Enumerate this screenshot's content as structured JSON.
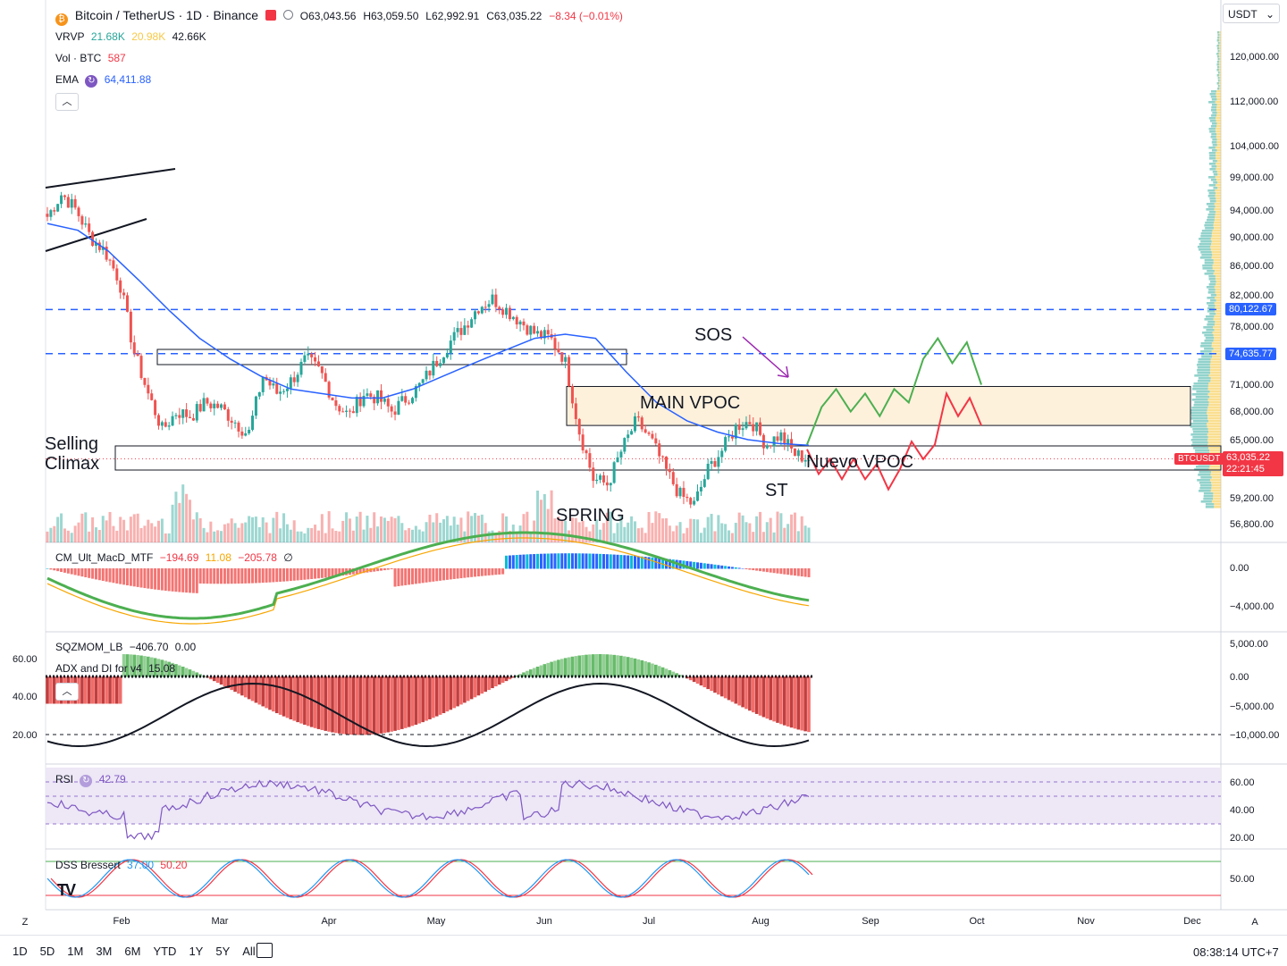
{
  "header": {
    "symbol": "Bitcoin / TetherUS · 1D · Binance",
    "open": "O63,043.56",
    "high": "H63,059.50",
    "low": "L62,992.91",
    "close": "C63,035.22",
    "change": "−8.34 (−0.01%)",
    "currency": "USDT"
  },
  "indicators": {
    "vrvp": {
      "name": "VRVP",
      "v1": "21.68K",
      "v2": "20.98K",
      "v3": "42.66K"
    },
    "vol": {
      "name": "Vol · BTC",
      "value": "587"
    },
    "ema": {
      "name": "EMA",
      "value": "64,411.88"
    },
    "macd": {
      "name": "CM_Ult_MacD_MTF",
      "v1": "−194.69",
      "v2": "11.08",
      "v3": "−205.78",
      "v4": "∅"
    },
    "sqz": {
      "name": "SQZMOM_LB",
      "v1": "−406.70",
      "v2": "0.00"
    },
    "adx": {
      "name": "ADX and DI for v4",
      "value": "15.08"
    },
    "rsi": {
      "name": "RSI",
      "value": "42.79"
    },
    "dss": {
      "name": "DSS Bressert",
      "v1": "37.00",
      "v2": "50.20"
    }
  },
  "annotations": {
    "sos": "SOS",
    "main_vpoc": "MAIN VPOC",
    "selling_climax_1": "Selling",
    "selling_climax_2": "Climax",
    "nuevo_vpoc": "Nuevo VPOC",
    "st": "ST",
    "spring": "SPRING"
  },
  "price_badges": {
    "level1": "80,122.67",
    "level2": "74,635.77",
    "current_symbol": "BTCUSDT",
    "current_price": "63,035.22",
    "countdown": "22:21:45"
  },
  "price_axis": [
    "120,000.00",
    "112,000.00",
    "104,000.00",
    "99,000.00",
    "94,000.00",
    "90,000.00",
    "86,000.00",
    "82,000.00",
    "78,000.00",
    "71,000.00",
    "68,000.00",
    "65,000.00",
    "59,200.00",
    "56,800.00"
  ],
  "macd_axis": [
    "0.00",
    "−4,000.00"
  ],
  "sqz_axis": [
    "5,000.00",
    "0.00",
    "−5,000.00",
    "−10,000.00"
  ],
  "adx_axis": [
    "60.00",
    "40.00",
    "20.00"
  ],
  "rsi_axis": [
    "60.00",
    "40.00",
    "20.00"
  ],
  "dss_axis": [
    "50.00"
  ],
  "time_axis": [
    "Feb",
    "Mar",
    "Apr",
    "May",
    "Jun",
    "Jul",
    "Aug",
    "Sep",
    "Oct",
    "Nov",
    "Dec"
  ],
  "bottom_bar": {
    "ranges": [
      "1D",
      "5D",
      "1M",
      "3M",
      "6M",
      "YTD",
      "1Y",
      "5Y",
      "All"
    ],
    "clock": "08:38:14 UTC+7",
    "z_label": "Z",
    "a_label": "A"
  },
  "colors": {
    "up": "#26a69a",
    "down": "#ef5350",
    "ema": "#2962ff",
    "level": "#2962ff",
    "green_path": "#4caf50",
    "red_path": "#f23645",
    "vpoc_fill": "#fdf1dc",
    "rsi_fill": "#ede7f6",
    "rsi_line": "#7e57c2"
  },
  "chart_data": {
    "type": "candlestick",
    "symbol": "BTCUSDT",
    "interval": "1D",
    "levels": [
      80122.67,
      74635.77
    ],
    "main_vpoc_zone": [
      66500,
      70800
    ],
    "nuevo_vpoc_zone": [
      61500,
      64200
    ],
    "close_path": [
      93000,
      96500,
      94000,
      90000,
      88000,
      84000,
      75000,
      70000,
      66000,
      68000,
      67500,
      69000,
      68500,
      67000,
      65500,
      72000,
      70000,
      71500,
      74000,
      72500,
      69000,
      67500,
      70000,
      69500,
      68000,
      69500,
      71000,
      73500,
      76000,
      78000,
      80500,
      81500,
      80000,
      78500,
      77000,
      76500,
      74000,
      66000,
      61000,
      60500,
      64000,
      67000,
      65000,
      62000,
      59500,
      58500,
      62000,
      64000,
      66500,
      67000,
      64500,
      65500,
      63500,
      63035
    ],
    "ema_path": [
      92000,
      91000,
      88000,
      84000,
      80000,
      76500,
      74000,
      72000,
      70500,
      70000,
      69500,
      69500,
      70500,
      72000,
      73500,
      75000,
      76500,
      77000,
      76500,
      72500,
      69000,
      67000,
      65800,
      65000,
      64600,
      64411
    ],
    "projection_green": [
      64500,
      68500,
      70500,
      68000,
      70000,
      67500,
      70500,
      69000,
      74000,
      76500,
      73500,
      76000,
      71000
    ],
    "projection_red": [
      64000,
      61500,
      63000,
      61000,
      63000,
      61000,
      62500,
      60000,
      62000,
      64800,
      63000,
      64500,
      70000,
      67500,
      69500,
      66500
    ]
  }
}
